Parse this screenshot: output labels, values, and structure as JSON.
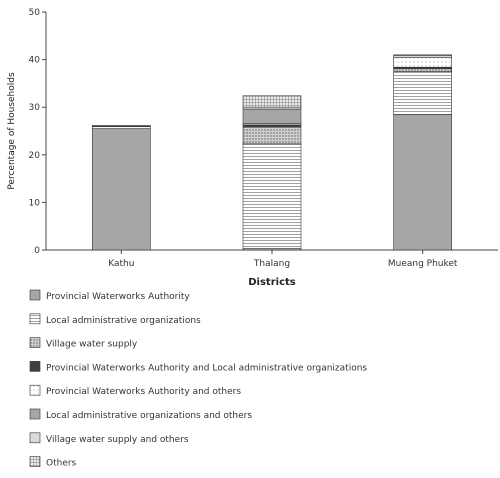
{
  "chart_data": {
    "type": "bar",
    "stacked": true,
    "title": "",
    "xlabel": "Districts",
    "ylabel": "Percentage of Households",
    "ylim": [
      0,
      50
    ],
    "yticks": [
      0,
      10,
      20,
      30,
      40,
      50
    ],
    "grid": false,
    "legend_position": "bottom",
    "categories": [
      "Kathu",
      "Thalang",
      "Mueang Phuket"
    ],
    "series": [
      {
        "name": "Provincial Waterworks Authority",
        "pattern": "solid-gray",
        "color": "#a6a6a6",
        "values": [
          25.5,
          0.3,
          28.5
        ]
      },
      {
        "name": "Local administrative organizations",
        "pattern": "h-lines",
        "color": "#d9d9d9",
        "values": [
          0.4,
          22.0,
          9.0
        ]
      },
      {
        "name": "Village water supply",
        "pattern": "dots",
        "color": "#bfbfbf",
        "values": [
          0,
          3.5,
          0.6
        ]
      },
      {
        "name": "Provincial Waterworks Authority and Local administrative organizations",
        "pattern": "solid-dark",
        "color": "#404040",
        "values": [
          0,
          0.5,
          0.3
        ]
      },
      {
        "name": "Provincial Waterworks Authority and others",
        "pattern": "sparse-dots",
        "color": "#f2f2f2",
        "values": [
          0,
          0.3,
          2.0
        ]
      },
      {
        "name": "Local administrative organizations and others",
        "pattern": "solid-gray",
        "color": "#a6a6a6",
        "values": [
          0,
          3.0,
          0
        ]
      },
      {
        "name": "Village water supply and others",
        "pattern": "light-gray",
        "color": "#d9d9d9",
        "values": [
          0.1,
          0.4,
          0.5
        ]
      },
      {
        "name": "Others",
        "pattern": "grid",
        "color": "#e0e0e0",
        "values": [
          0.2,
          2.4,
          0.1
        ]
      }
    ]
  }
}
